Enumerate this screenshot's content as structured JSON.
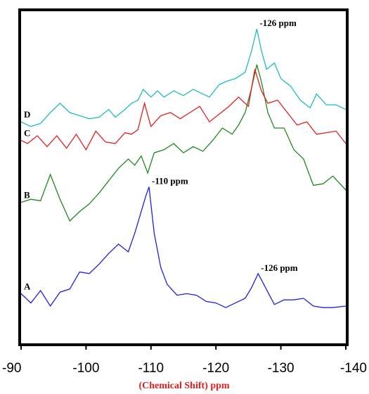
{
  "chart_data": {
    "type": "line",
    "xlabel": "(Chemical Shift) ppm",
    "ylabel": "",
    "xlim": [
      -90,
      -140
    ],
    "xticks": [
      -90,
      -100,
      -110,
      -120,
      -130,
      -140
    ],
    "ylim": [
      0,
      100
    ],
    "grid": false,
    "series": [
      {
        "name": "A",
        "color": "#2020e0",
        "x": [
          -90,
          -91.5,
          -93,
          -94.5,
          -96,
          -97.5,
          -99,
          -100.5,
          -102,
          -103.5,
          -105,
          -106.5,
          -107.5,
          -108.5,
          -109.2,
          -109.7,
          -110.5,
          -111.5,
          -112.5,
          -114,
          -115.5,
          -117,
          -118.5,
          -120,
          -121.5,
          -123,
          -124.5,
          -125.5,
          -126.5,
          -127.5,
          -129,
          -130.5,
          -132,
          -133.5,
          -135,
          -136.5,
          -138,
          -140
        ],
        "y": [
          11.5,
          8.5,
          12.5,
          7.5,
          12,
          13,
          18.5,
          18,
          21,
          24.5,
          27.5,
          25,
          31,
          38,
          43,
          46,
          31,
          20,
          14.5,
          11,
          11.5,
          11,
          9,
          8.5,
          7,
          8.5,
          10,
          13.5,
          18,
          14,
          8,
          9.5,
          9.5,
          10,
          7.5,
          7,
          7,
          7.5
        ]
      },
      {
        "name": "B",
        "color": "#208820",
        "x": [
          -90,
          -91.5,
          -93,
          -94.5,
          -96,
          -97.5,
          -99,
          -100.5,
          -102,
          -103.5,
          -105,
          -106.5,
          -107.5,
          -108.5,
          -109.5,
          -110.5,
          -112,
          -113.5,
          -115,
          -116.5,
          -118,
          -119.5,
          -121,
          -122.5,
          -123.5,
          -124.5,
          -125.5,
          -126.3,
          -127,
          -128,
          -129,
          -130.5,
          -132,
          -133.5,
          -135,
          -136.5,
          -138,
          -140
        ],
        "y": [
          41,
          42,
          41.5,
          50,
          42,
          35,
          38,
          40.5,
          44,
          48,
          52,
          55,
          53,
          56,
          50.5,
          57,
          58,
          60,
          57,
          59,
          57.5,
          61,
          65,
          63,
          66,
          70,
          78,
          85.5,
          80,
          70,
          65,
          65,
          58,
          55,
          46.5,
          47,
          49.5,
          45
        ]
      },
      {
        "name": "C",
        "color": "#e02020",
        "x": [
          -90,
          -91,
          -92.5,
          -94,
          -95.5,
          -97,
          -98.5,
          -100,
          -101.5,
          -103,
          -104.5,
          -106,
          -107,
          -108,
          -109,
          -110,
          -111.5,
          -113,
          -114.5,
          -116,
          -117.5,
          -119,
          -120.5,
          -122,
          -123.5,
          -125,
          -126,
          -127,
          -128,
          -129.5,
          -131,
          -132.5,
          -134,
          -135.5,
          -137,
          -138.5,
          -140
        ],
        "y": [
          61,
          60,
          62.5,
          59,
          62.5,
          58.5,
          63,
          58,
          64,
          60.5,
          60,
          63.5,
          63,
          64.5,
          73,
          65.5,
          69,
          70,
          68,
          70,
          72,
          67,
          69.5,
          72,
          75,
          72,
          84,
          77,
          73,
          74,
          70,
          66,
          67,
          63,
          63.5,
          64,
          60
        ]
      },
      {
        "name": "D",
        "color": "#20bcbc",
        "x": [
          -90,
          -91.5,
          -93,
          -94.5,
          -96,
          -97.5,
          -99,
          -100.5,
          -102,
          -103.5,
          -104.5,
          -106,
          -107,
          -108,
          -108.8,
          -110,
          -111,
          -112,
          -113.5,
          -115,
          -116.5,
          -117.5,
          -119,
          -120.5,
          -121.5,
          -123,
          -124.5,
          -125.5,
          -126.3,
          -127,
          -127.8,
          -129,
          -130,
          -131.5,
          -133,
          -134.5,
          -135.5,
          -137,
          -138.5,
          -140
        ],
        "y": [
          67,
          65.5,
          66.5,
          70,
          73,
          70,
          69,
          68,
          68.5,
          71,
          68.5,
          71,
          73,
          74,
          77.5,
          75,
          77,
          75,
          77,
          75.5,
          77.5,
          76.5,
          75,
          79,
          80,
          81,
          83,
          90,
          97,
          90,
          84,
          86,
          81,
          78.5,
          74,
          71.5,
          76,
          72.5,
          72.5,
          71
        ]
      }
    ],
    "annotations": [
      {
        "text": "-126 ppm",
        "series": "D",
        "x": -126.3,
        "y": 97
      },
      {
        "text": "-110 ppm",
        "series": "A",
        "x": -109.7,
        "y": 46
      },
      {
        "text": "-126 ppm",
        "series": "A",
        "x": -126.5,
        "y": 18
      }
    ]
  }
}
